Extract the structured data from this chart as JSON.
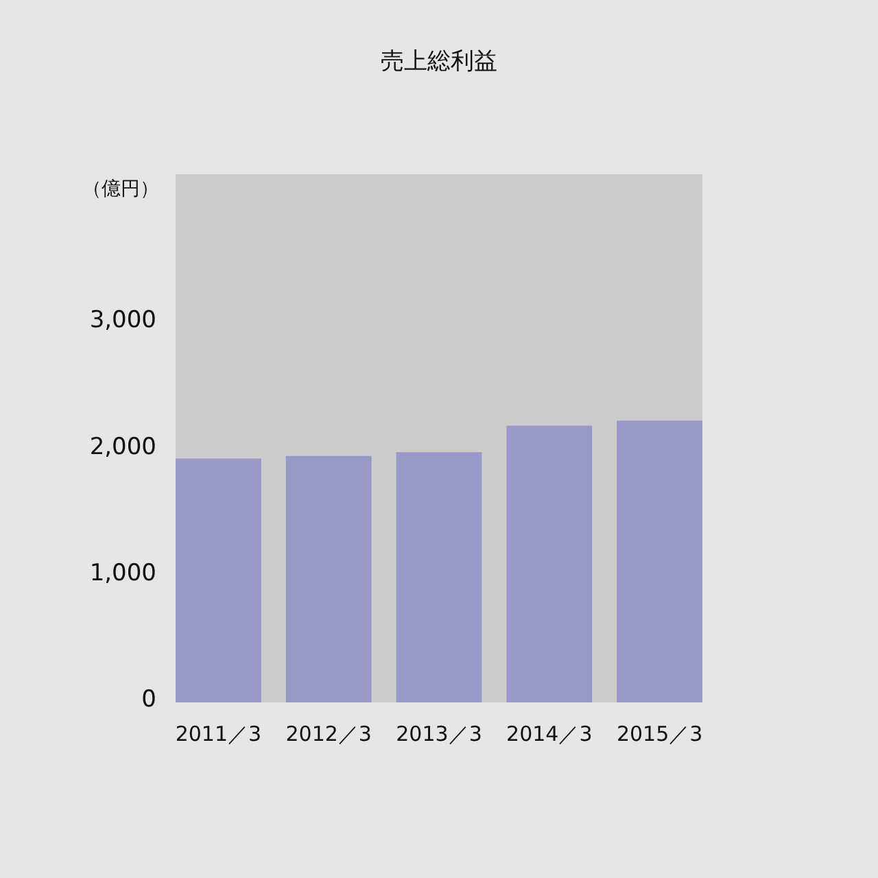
{
  "chart_data": {
    "type": "bar",
    "title": "売上総利益",
    "ylabel": "（億円）",
    "categories": [
      "2011／3",
      "2012／3",
      "2013／3",
      "2014／3",
      "2015／3"
    ],
    "values": [
      1930,
      1950,
      1980,
      2190,
      2230
    ],
    "color": "#9999c9",
    "ylim": [
      0,
      4180
    ],
    "yticks": [
      {
        "value": 0,
        "label": "0"
      },
      {
        "value": 1000,
        "label": "1,000"
      },
      {
        "value": 2000,
        "label": "2,000"
      },
      {
        "value": 3000,
        "label": "3,000"
      }
    ],
    "grid": false
  }
}
